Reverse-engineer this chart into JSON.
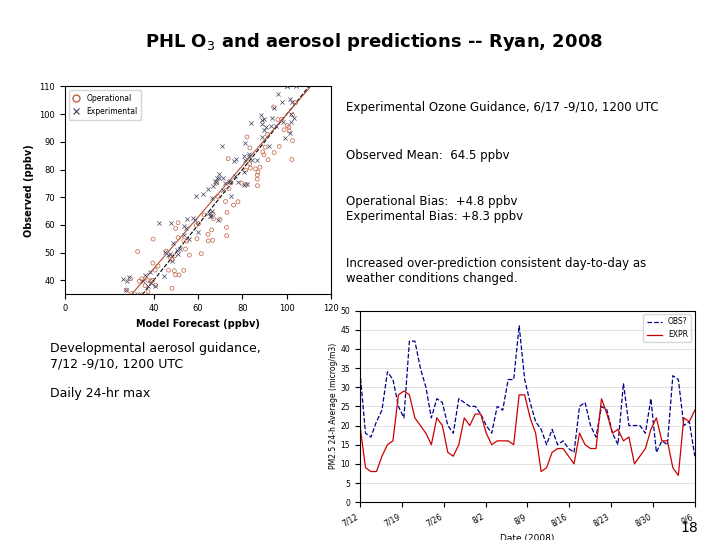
{
  "title": "PHL O$_3$ and aerosol predictions -- Ryan, 2008",
  "title_bg": "#7ececa",
  "scatter_xlabel": "Model Forecast (ppbv)",
  "scatter_ylabel": "Observed (ppbv)",
  "text_lines": [
    "Experimental Ozone Guidance, 6/17 -9/10, 1200 UTC",
    "Observed Mean:  64.5 ppbv",
    "Operational Bias:  +4.8 ppbv\nExperimental Bias: +8.3 ppbv",
    "Increased over-prediction consistent day-to-day as\nweather conditions changed."
  ],
  "bottom_left_text": "Developmental aerosol guidance,\n7/12 -9/10, 1200 UTC\n\nDaily 24-hr max",
  "ts_xlabel": "Date (2008)",
  "ts_ylabel": "PM2.5 24-h Average (microg/m3)",
  "ts_ylim": [
    0,
    50
  ],
  "ts_yticks": [
    0,
    5,
    10,
    15,
    20,
    25,
    30,
    35,
    40,
    45,
    50
  ],
  "ts_xtick_labels": [
    "7/12",
    "7/19",
    "7/26",
    "8/2",
    "8/9",
    "8/16",
    "8/23",
    "8/30",
    "9/6"
  ],
  "ts_legend": [
    "OBS?",
    "EXPR"
  ],
  "ts_obs_color": "#00008b",
  "ts_exp_color": "#cc0000",
  "page_number": "18"
}
